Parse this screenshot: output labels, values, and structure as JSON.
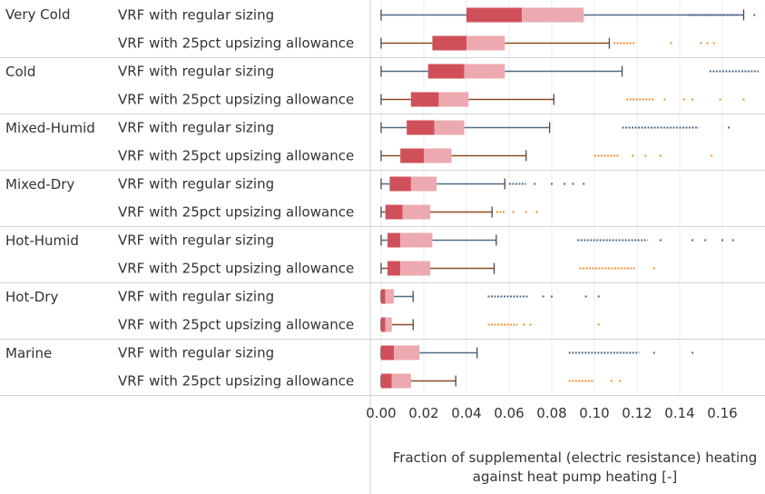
{
  "chart_data": {
    "type": "boxplot",
    "title": "",
    "xlabel_lines": [
      "Fraction of supplemental (electric resistance) heating",
      "against heat pump heating [-]"
    ],
    "xlim": [
      -0.003,
      0.178
    ],
    "xticks": [
      0.0,
      0.02,
      0.04,
      0.06,
      0.08,
      0.1,
      0.12,
      0.14,
      0.16
    ],
    "xtick_labels": [
      "0.00",
      "0.02",
      "0.04",
      "0.06",
      "0.08",
      "0.10",
      "0.12",
      "0.14",
      "0.16"
    ],
    "grid": "vertical",
    "series": [
      {
        "key": "regular",
        "name": "VRF with regular sizing",
        "color": "#4e6a86",
        "box_dark": "#d0505a",
        "box_light": "#ecaab0"
      },
      {
        "key": "upsized",
        "name": "VRF with 25pct upsizing allowance",
        "color": "#f28e2b",
        "whisker_color": "#8c4a23",
        "box_dark": "#d0505a",
        "box_light": "#ecaab0"
      }
    ],
    "groups": [
      {
        "name": "Very Cold",
        "rows": [
          {
            "series": "regular",
            "whisker_low": 0.0,
            "q1": 0.04,
            "median": 0.066,
            "q3": 0.095,
            "whisker_high": 0.17,
            "outlier_bands": [
              [
                0.144,
                0.168
              ]
            ],
            "outliers": [
              0.175
            ]
          },
          {
            "series": "upsized",
            "whisker_low": 0.0,
            "q1": 0.024,
            "median": 0.04,
            "q3": 0.058,
            "whisker_high": 0.107,
            "outlier_bands": [
              [
                0.109,
                0.119
              ]
            ],
            "outliers": [
              0.136,
              0.15,
              0.153,
              0.156
            ]
          }
        ]
      },
      {
        "name": "Cold",
        "rows": [
          {
            "series": "regular",
            "whisker_low": 0.0,
            "q1": 0.022,
            "median": 0.039,
            "q3": 0.058,
            "whisker_high": 0.113,
            "outlier_bands": [
              [
                0.154,
                0.177
              ]
            ],
            "outliers": []
          },
          {
            "series": "upsized",
            "whisker_low": 0.0,
            "q1": 0.014,
            "median": 0.027,
            "q3": 0.041,
            "whisker_high": 0.081,
            "outlier_bands": [
              [
                0.115,
                0.128
              ]
            ],
            "outliers": [
              0.133,
              0.142,
              0.146,
              0.159,
              0.17
            ]
          }
        ]
      },
      {
        "name": "Mixed-Humid",
        "rows": [
          {
            "series": "regular",
            "whisker_low": 0.0,
            "q1": 0.012,
            "median": 0.025,
            "q3": 0.039,
            "whisker_high": 0.079,
            "outlier_bands": [
              [
                0.113,
                0.149
              ]
            ],
            "outliers": [
              0.163
            ]
          },
          {
            "series": "upsized",
            "whisker_low": 0.0,
            "q1": 0.009,
            "median": 0.02,
            "q3": 0.033,
            "whisker_high": 0.068,
            "outlier_bands": [
              [
                0.1,
                0.112
              ]
            ],
            "outliers": [
              0.118,
              0.124,
              0.131,
              0.155
            ]
          }
        ]
      },
      {
        "name": "Mixed-Dry",
        "rows": [
          {
            "series": "regular",
            "whisker_low": 0.0,
            "q1": 0.004,
            "median": 0.014,
            "q3": 0.026,
            "whisker_high": 0.058,
            "outlier_bands": [
              [
                0.06,
                0.068
              ]
            ],
            "outliers": [
              0.072,
              0.08,
              0.086,
              0.09,
              0.095
            ]
          },
          {
            "series": "upsized",
            "whisker_low": 0.0,
            "q1": 0.002,
            "median": 0.01,
            "q3": 0.023,
            "whisker_high": 0.052,
            "outlier_bands": [
              [
                0.054,
                0.058
              ]
            ],
            "outliers": [
              0.062,
              0.068,
              0.073
            ]
          }
        ]
      },
      {
        "name": "Hot-Humid",
        "rows": [
          {
            "series": "regular",
            "whisker_low": 0.0,
            "q1": 0.003,
            "median": 0.009,
            "q3": 0.024,
            "whisker_high": 0.054,
            "outlier_bands": [
              [
                0.092,
                0.125
              ]
            ],
            "outliers": [
              0.131,
              0.146,
              0.152,
              0.16,
              0.165
            ]
          },
          {
            "series": "upsized",
            "whisker_low": 0.0,
            "q1": 0.003,
            "median": 0.009,
            "q3": 0.023,
            "whisker_high": 0.053,
            "outlier_bands": [
              [
                0.093,
                0.119
              ]
            ],
            "outliers": [
              0.128
            ]
          }
        ]
      },
      {
        "name": "Hot-Dry",
        "rows": [
          {
            "series": "regular",
            "whisker_low": 0.0,
            "q1": 0.0,
            "median": 0.002,
            "q3": 0.006,
            "whisker_high": 0.015,
            "outlier_bands": [
              [
                0.05,
                0.069
              ]
            ],
            "outliers": [
              0.076,
              0.08,
              0.096,
              0.102
            ]
          },
          {
            "series": "upsized",
            "whisker_low": 0.0,
            "q1": 0.0,
            "median": 0.002,
            "q3": 0.005,
            "whisker_high": 0.015,
            "outlier_bands": [
              [
                0.05,
                0.064
              ]
            ],
            "outliers": [
              0.067,
              0.07,
              0.102
            ]
          }
        ]
      },
      {
        "name": "Marine",
        "rows": [
          {
            "series": "regular",
            "whisker_low": 0.0,
            "q1": 0.0,
            "median": 0.006,
            "q3": 0.018,
            "whisker_high": 0.045,
            "outlier_bands": [
              [
                0.088,
                0.121
              ]
            ],
            "outliers": [
              0.128,
              0.146
            ]
          },
          {
            "series": "upsized",
            "whisker_low": 0.0,
            "q1": 0.0,
            "median": 0.005,
            "q3": 0.014,
            "whisker_high": 0.035,
            "outlier_bands": [
              [
                0.088,
                0.1
              ]
            ],
            "outliers": [
              0.108,
              0.112
            ]
          }
        ]
      }
    ]
  }
}
